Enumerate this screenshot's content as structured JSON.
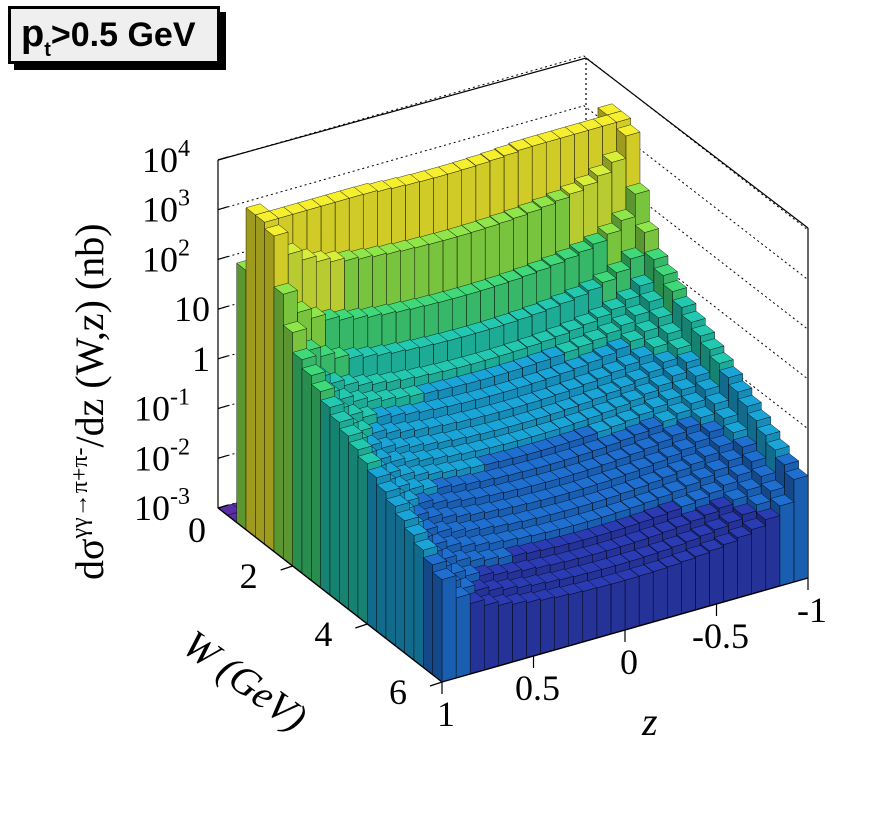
{
  "chart_data": {
    "type": "lego3d",
    "title": "",
    "label_box": {
      "main": "p",
      "sub": "t",
      "rest": ">0.5 GeV"
    },
    "ylabel_pieces": {
      "main1": "dσ",
      "sup": "γγ→π+π-",
      "main2": "/dz  (W,z) (nb)"
    },
    "xlabel": "z",
    "wlabel": "W (GeV)",
    "z_axis": {
      "scale": "log",
      "range": [
        0.001,
        10000
      ],
      "ticks": [
        {
          "base": "10",
          "exp": "4",
          "value": 10000
        },
        {
          "base": "10",
          "exp": "3",
          "value": 1000
        },
        {
          "base": "10",
          "exp": "2",
          "value": 100
        },
        {
          "base": "10",
          "exp": "",
          "value": 10
        },
        {
          "base": "1",
          "exp": "",
          "value": 1
        },
        {
          "base": "10",
          "exp": "-1",
          "value": 0.1
        },
        {
          "base": "10",
          "exp": "-2",
          "value": 0.01
        },
        {
          "base": "10",
          "exp": "-3",
          "value": 0.001
        }
      ],
      "zero_label": "0"
    },
    "w_axis": {
      "range": [
        0,
        6
      ],
      "tick_labels": [
        "2",
        "4",
        "6"
      ]
    },
    "x_axis": {
      "range": [
        1,
        -1
      ],
      "tick_labels": [
        "1",
        "0.5",
        "0",
        "-0.5",
        "-1"
      ]
    },
    "surface": {
      "w_peak_curve": [
        [
          0.5,
          0.003
        ],
        [
          0.6,
          2.5
        ],
        [
          0.8,
          30
        ],
        [
          1.0,
          300
        ],
        [
          1.2,
          900
        ],
        [
          1.4,
          30
        ],
        [
          1.6,
          5
        ],
        [
          2.0,
          0.5
        ],
        [
          3.0,
          0.1
        ],
        [
          4.0,
          0.03
        ],
        [
          5.0,
          0.008
        ],
        [
          6.0,
          0.002
        ]
      ],
      "edge_note": "rises toward |z|=1, cut at 1 - small margin"
    },
    "colors": {
      "palette": [
        "#4a0b8f",
        "#2b3bb3",
        "#1f6fd1",
        "#1aa5d8",
        "#22c9b0",
        "#3fd97a",
        "#8ee64a",
        "#d8ef3a",
        "#f5ef2e"
      ]
    }
  }
}
